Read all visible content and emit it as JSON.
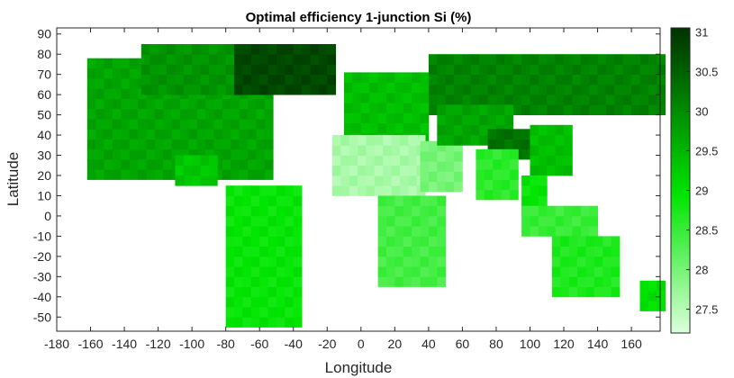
{
  "chart_data": {
    "type": "heatmap",
    "title": "Optimal efficiency 1-junction Si (%)",
    "xlabel": "Longitude",
    "ylabel": "Latitude",
    "xlim": [
      -180,
      177
    ],
    "ylim": [
      -57,
      93
    ],
    "xticks": [
      -180,
      -160,
      -140,
      -120,
      -100,
      -80,
      -60,
      -40,
      -20,
      0,
      20,
      40,
      60,
      80,
      100,
      120,
      140,
      160
    ],
    "yticks": [
      -50,
      -40,
      -30,
      -20,
      -10,
      0,
      10,
      20,
      30,
      40,
      50,
      60,
      70,
      80,
      90
    ],
    "colorbar": {
      "min": 27.2,
      "max": 31.05,
      "ticks": [
        27.5,
        28,
        28.5,
        29,
        29.5,
        30,
        30.5,
        31
      ],
      "colors": [
        "#dcffdc",
        "#00e600",
        "#003200"
      ]
    },
    "grid": false,
    "cell_size_deg": 5,
    "regions": [
      {
        "name": "north-america",
        "lon": [
          -162,
          -55
        ],
        "lat": [
          18,
          75
        ],
        "value": 29.7
      },
      {
        "name": "canada-north",
        "lon": [
          -130,
          -65
        ],
        "lat": [
          60,
          82
        ],
        "value": 29.9
      },
      {
        "name": "mexico",
        "lon": [
          -110,
          -85
        ],
        "lat": [
          15,
          30
        ],
        "value": 29.3
      },
      {
        "name": "greenland",
        "lon": [
          -75,
          -15
        ],
        "lat": [
          60,
          84
        ],
        "value": 30.8
      },
      {
        "name": "south-america",
        "lon": [
          -80,
          -35
        ],
        "lat": [
          -55,
          12
        ],
        "value": 28.9
      },
      {
        "name": "europe",
        "lon": [
          -10,
          40
        ],
        "lat": [
          36,
          71
        ],
        "value": 29.4
      },
      {
        "name": "africa-north",
        "lon": [
          -17,
          35
        ],
        "lat": [
          10,
          37
        ],
        "value": 27.6
      },
      {
        "name": "africa-south",
        "lon": [
          10,
          50
        ],
        "lat": [
          -35,
          10
        ],
        "value": 28.4
      },
      {
        "name": "middle-east",
        "lon": [
          35,
          60
        ],
        "lat": [
          12,
          35
        ],
        "value": 28.0
      },
      {
        "name": "russia",
        "lon": [
          40,
          180
        ],
        "lat": [
          50,
          76
        ],
        "value": 30.1
      },
      {
        "name": "central-asia",
        "lon": [
          45,
          90
        ],
        "lat": [
          35,
          55
        ],
        "value": 29.7
      },
      {
        "name": "tibet",
        "lon": [
          75,
          100
        ],
        "lat": [
          28,
          40
        ],
        "value": 30.3
      },
      {
        "name": "india",
        "lon": [
          68,
          90
        ],
        "lat": [
          8,
          30
        ],
        "value": 28.6
      },
      {
        "name": "china",
        "lon": [
          100,
          125
        ],
        "lat": [
          20,
          45
        ],
        "value": 29.4
      },
      {
        "name": "southeast-asia",
        "lon": [
          95,
          110
        ],
        "lat": [
          0,
          20
        ],
        "value": 28.9
      },
      {
        "name": "indonesia",
        "lon": [
          95,
          140
        ],
        "lat": [
          -10,
          5
        ],
        "value": 28.5
      },
      {
        "name": "australia",
        "lon": [
          113,
          153
        ],
        "lat": [
          -40,
          -12
        ],
        "value": 28.7
      },
      {
        "name": "new-zealand",
        "lon": [
          165,
          178
        ],
        "lat": [
          -47,
          -35
        ],
        "value": 29.0
      }
    ]
  }
}
